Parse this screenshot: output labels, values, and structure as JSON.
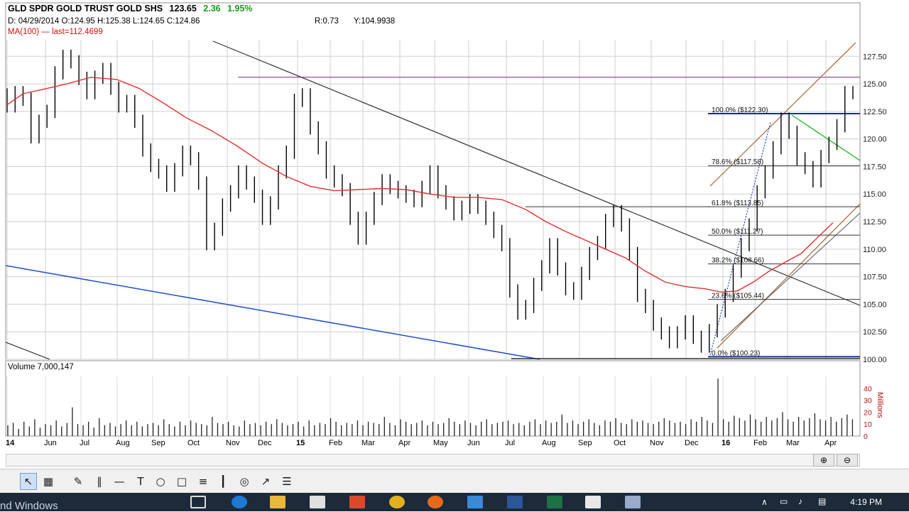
{
  "header": {
    "title": "GLD SPDR GOLD TRUST GOLD SHS",
    "last": "123.65",
    "change": "2.36",
    "change_pct": "1.95%",
    "ohlc": "D: 04/29/2014 O:124.95 H:125.38 L:124.65 C:124.86",
    "r_value": "R:0.73",
    "y_value": "Y:104.9938",
    "ma_label": "MA(100) — last=112.4699"
  },
  "volume_label": "Volume 7,000,147",
  "chart_data": [
    {
      "type": "line",
      "title": "GLD SPDR GOLD TRUST GOLD SHS",
      "x_axis_ticks": [
        "14",
        "Jun",
        "Jul",
        "Aug",
        "Sep",
        "Oct",
        "Nov",
        "Dec",
        "15",
        "Feb",
        "Mar",
        "Apr",
        "May",
        "Jun",
        "Jul",
        "Aug",
        "Sep",
        "Oct",
        "Nov",
        "Dec",
        "16",
        "Feb",
        "Mar",
        "Apr"
      ],
      "y_axis_ticks": [
        "127.50",
        "125.00",
        "122.50",
        "120.00",
        "117.50",
        "115.00",
        "112.50",
        "110.00",
        "107.50",
        "105.00",
        "102.50",
        "100.00"
      ],
      "ylim": [
        100,
        129
      ],
      "grid": true,
      "series": [
        {
          "name": "MA(100)",
          "color": "#e03030",
          "values": [
            [
              0,
              123.1
            ],
            [
              8,
              124.1
            ],
            [
              18,
              124.5
            ],
            [
              30,
              125.0
            ],
            [
              42,
              125.6
            ],
            [
              55,
              125.4
            ],
            [
              66,
              124.6
            ],
            [
              78,
              123.3
            ],
            [
              90,
              121.9
            ],
            [
              102,
              120.8
            ],
            [
              115,
              119.4
            ],
            [
              128,
              117.8
            ],
            [
              140,
              116.6
            ],
            [
              152,
              115.7
            ],
            [
              164,
              115.3
            ],
            [
              176,
              115.4
            ],
            [
              188,
              115.5
            ],
            [
              200,
              115.4
            ],
            [
              212,
              115.0
            ],
            [
              224,
              114.7
            ],
            [
              236,
              114.7
            ],
            [
              248,
              114.5
            ],
            [
              260,
              113.6
            ],
            [
              270,
              112.5
            ],
            [
              280,
              111.6
            ],
            [
              290,
              110.8
            ],
            [
              300,
              110.0
            ],
            [
              310,
              109.2
            ],
            [
              320,
              108.0
            ],
            [
              330,
              107.0
            ],
            [
              340,
              106.6
            ],
            [
              350,
              106.4
            ],
            [
              358,
              106.1
            ],
            [
              366,
              106.2
            ],
            [
              374,
              107.0
            ],
            [
              382,
              108.0
            ],
            [
              390,
              108.8
            ],
            [
              398,
              109.6
            ],
            [
              406,
              111.0
            ],
            [
              414,
              112.4
            ]
          ]
        },
        {
          "name": "Price",
          "color": "#000000",
          "values": [
            [
              0,
              124.0
            ],
            [
              4,
              123.0
            ],
            [
              8,
              124.2
            ],
            [
              12,
              123.6
            ],
            [
              16,
              120.2
            ],
            [
              20,
              121.6
            ],
            [
              24,
              122.5
            ],
            [
              28,
              126.0
            ],
            [
              32,
              127.5
            ],
            [
              36,
              127.0
            ],
            [
              40,
              125.5
            ],
            [
              44,
              124.2
            ],
            [
              48,
              125.6
            ],
            [
              52,
              126.3
            ],
            [
              56,
              124.6
            ],
            [
              60,
              123.0
            ],
            [
              64,
              123.4
            ],
            [
              68,
              121.6
            ],
            [
              72,
              119.0
            ],
            [
              76,
              117.6
            ],
            [
              80,
              117.0
            ],
            [
              84,
              115.8
            ],
            [
              88,
              117.2
            ],
            [
              92,
              118.8
            ],
            [
              96,
              118.2
            ],
            [
              100,
              116.0
            ],
            [
              104,
              110.5
            ],
            [
              108,
              111.8
            ],
            [
              112,
              114.0
            ],
            [
              116,
              115.2
            ],
            [
              120,
              117.0
            ],
            [
              124,
              116.0
            ],
            [
              128,
              114.8
            ],
            [
              132,
              112.8
            ],
            [
              136,
              114.2
            ],
            [
              140,
              117.0
            ],
            [
              144,
              118.8
            ],
            [
              148,
              123.5
            ],
            [
              152,
              124.0
            ],
            [
              156,
              121.0
            ],
            [
              160,
              119.2
            ],
            [
              164,
              117.0
            ],
            [
              168,
              116.2
            ],
            [
              172,
              115.4
            ],
            [
              176,
              112.8
            ],
            [
              180,
              111.0
            ],
            [
              184,
              112.8
            ],
            [
              188,
              114.6
            ],
            [
              192,
              116.2
            ],
            [
              196,
              115.6
            ],
            [
              200,
              115.2
            ],
            [
              204,
              114.8
            ],
            [
              208,
              114.4
            ],
            [
              212,
              115.6
            ],
            [
              216,
              117.0
            ],
            [
              220,
              115.2
            ],
            [
              224,
              114.2
            ],
            [
              228,
              113.2
            ],
            [
              232,
              113.8
            ],
            [
              236,
              114.4
            ],
            [
              240,
              113.8
            ],
            [
              244,
              112.8
            ],
            [
              248,
              111.6
            ],
            [
              252,
              110.4
            ],
            [
              256,
              106.2
            ],
            [
              260,
              104.2
            ],
            [
              264,
              104.8
            ],
            [
              268,
              106.8
            ],
            [
              272,
              108.4
            ],
            [
              276,
              110.4
            ],
            [
              280,
              108.2
            ],
            [
              284,
              106.4
            ],
            [
              288,
              106.0
            ],
            [
              292,
              107.8
            ],
            [
              296,
              109.6
            ],
            [
              300,
              110.6
            ],
            [
              304,
              112.6
            ],
            [
              308,
              113.4
            ],
            [
              312,
              112.2
            ],
            [
              316,
              109.6
            ],
            [
              320,
              105.8
            ],
            [
              324,
              104.8
            ],
            [
              328,
              103.2
            ],
            [
              332,
              102.4
            ],
            [
              336,
              101.6
            ],
            [
              340,
              102.4
            ],
            [
              344,
              103.4
            ],
            [
              348,
              102.0
            ],
            [
              352,
              101.2
            ],
            [
              356,
              102.6
            ],
            [
              360,
              104.4
            ],
            [
              364,
              105.8
            ],
            [
              368,
              108.0
            ],
            [
              372,
              110.4
            ],
            [
              376,
              112.2
            ],
            [
              380,
              115.2
            ],
            [
              384,
              117.0
            ],
            [
              388,
              119.2
            ],
            [
              392,
              121.8
            ],
            [
              396,
              120.6
            ],
            [
              400,
              118.2
            ],
            [
              404,
              117.4
            ],
            [
              408,
              116.2
            ],
            [
              412,
              118.4
            ],
            [
              416,
              119.6
            ],
            [
              420,
              121.2
            ],
            [
              424,
              124.2
            ]
          ]
        }
      ],
      "fibonacci": [
        {
          "label": "100.0% ($122.30)",
          "value": 122.3
        },
        {
          "label": "78.6% ($117.58)",
          "value": 117.58
        },
        {
          "label": "61.8% ($113.85)",
          "value": 113.85
        },
        {
          "label": "50.0% ($111.27)",
          "value": 111.27
        },
        {
          "label": "38.2% ($108.66)",
          "value": 108.66
        },
        {
          "label": "23.6% ($105.44)",
          "value": 105.44
        },
        {
          "label": "0.0% ($100.23)",
          "value": 100.23
        }
      ],
      "resistance_level": 125.6,
      "support_level": 100.0
    },
    {
      "type": "bar",
      "title": "Volume 7,000,147",
      "ylabel": "Millions",
      "y_axis_ticks": [
        "40",
        "30",
        "20",
        "10",
        "0"
      ],
      "ylim": [
        0,
        50
      ],
      "values": [
        9,
        11,
        6,
        12,
        8,
        14,
        7,
        10,
        9,
        13,
        8,
        11,
        24,
        10,
        9,
        12,
        7,
        15,
        9,
        11,
        8,
        10,
        13,
        9,
        12,
        8,
        10,
        11,
        9,
        14,
        10,
        8,
        12,
        9,
        13,
        11,
        10,
        9,
        16,
        11,
        10,
        12,
        9,
        8,
        13,
        10,
        11,
        9,
        12,
        10,
        14,
        11,
        9,
        10,
        12,
        8,
        13,
        9,
        11,
        10,
        15,
        12,
        9,
        11,
        10,
        13,
        9,
        12,
        11,
        10,
        16,
        11,
        9,
        14,
        12,
        10,
        11,
        13,
        9,
        12,
        10,
        11,
        15,
        12,
        10,
        13,
        11,
        9,
        12,
        14,
        10,
        11,
        12,
        13,
        10,
        11,
        9,
        12,
        14,
        10,
        13,
        11,
        12,
        18,
        11,
        13,
        10,
        12,
        14,
        11,
        9,
        13,
        12,
        15,
        11,
        10,
        14,
        12,
        13,
        11,
        10,
        12,
        15,
        13,
        11,
        12,
        10,
        14,
        12,
        16,
        13,
        11,
        48,
        14,
        12,
        17,
        15,
        13,
        18,
        14,
        12,
        16,
        13,
        15,
        20,
        14,
        12,
        16,
        13,
        15,
        19,
        14,
        13,
        16,
        12,
        15,
        18,
        14
      ]
    }
  ],
  "toolbar": {
    "icons": [
      "pointer-icon",
      "table-icon",
      "pencil-icon",
      "parallel-lines-icon",
      "horizontal-line-icon",
      "text-icon",
      "ellipse-icon",
      "rectangle-icon",
      "fib-icon",
      "cycles-icon",
      "annotation-icon",
      "fan-icon",
      "menu-icon"
    ],
    "glyphs": [
      "↖",
      "▦",
      "✎",
      "∥",
      "—",
      "T",
      "○",
      "□",
      "≡",
      "┃",
      "◎",
      "↗",
      "☰"
    ]
  },
  "taskbar": {
    "clock": "4:19 PM",
    "watermark": "nd Windows"
  }
}
